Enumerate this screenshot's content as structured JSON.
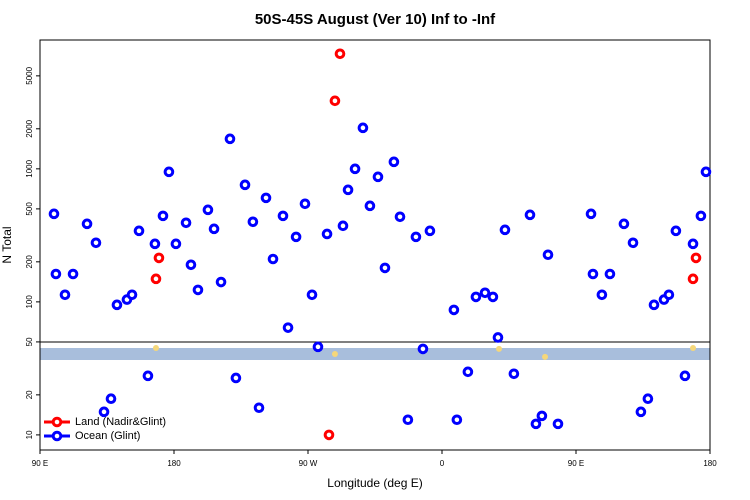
{
  "chart_data": {
    "type": "scatter",
    "title": "50S-45S August (Ver 10)   Inf to -Inf",
    "xlabel": "Longitude (deg E)",
    "ylabel": "N Total",
    "log_y": true,
    "xlim": [
      90,
      540
    ],
    "ylim": [
      7.7,
      9300
    ],
    "xticks": [
      {
        "value": 90,
        "label": "90 E"
      },
      180,
      {
        "value": 270,
        "label": "90 W"
      },
      {
        "value": 360,
        "label": "0"
      },
      {
        "value": 450,
        "label": "90 E"
      },
      {
        "value": 540,
        "label": "180"
      }
    ],
    "yticks": [
      10,
      20,
      50,
      100,
      200,
      500,
      1000,
      2000,
      5000
    ],
    "legend": "bottom-left",
    "series": [
      {
        "name": "Land (Nadir&Glint)",
        "color": "#ff0000",
        "x": [
          167.9,
          169.9,
          288.1,
          291.5,
          284.1,
          528.6,
          530.6
        ],
        "values": [
          149,
          214,
          3246,
          7328,
          10,
          149,
          214
        ]
      },
      {
        "name": "Ocean (Glint)",
        "color": "#0000ff",
        "x": [
          99.4,
          100.7,
          106.8,
          112.2,
          121.6,
          127.6,
          141.7,
          148.4,
          151.8,
          156.5,
          167.2,
          172.6,
          176.6,
          181.3,
          188.1,
          191.4,
          196.1,
          202.8,
          206.9,
          211.6,
          217.6,
          227.7,
          233,
          241.8,
          246.5,
          253.2,
          256.6,
          262,
          268,
          272.7,
          282.8,
          293.5,
          296.9,
          301.6,
          306.9,
          311.6,
          317,
          321.7,
          327.7,
          331.8,
          342.5,
          351.9,
          368,
          382.8,
          388.9,
          394.2,
          397.6,
          402.3,
          419.1,
          431.2,
          460.1,
          461.4,
          467.4,
          472.8,
          482.2,
          488.3,
          502.4,
          509.1,
          512.4,
          517.1,
          528.6,
          533.9,
          537.3,
          133,
          137.7,
          162.5,
          221.6,
          237.1,
          276.7,
          337.1,
          347.2,
          370,
          377.4,
          408.3,
          423.1,
          427.1,
          437.9,
          493.6,
          498.3,
          523.2
        ],
        "values": [
          459,
          162,
          113,
          162,
          386,
          278,
          95,
          104,
          113,
          342,
          273,
          443,
          949,
          273,
          393,
          190,
          123,
          492,
          354,
          141,
          1681,
          758,
          400,
          605,
          210,
          443,
          64,
          308,
          546,
          113,
          324,
          373,
          695,
          1000,
          2033,
          527,
          871,
          180,
          1129,
          436,
          308,
          342,
          87,
          109,
          117,
          109,
          54,
          348,
          451,
          226,
          459,
          162,
          113,
          162,
          386,
          278,
          95,
          104,
          113,
          342,
          273,
          443,
          949,
          14.9,
          18.7,
          27.8,
          26.8,
          16,
          45.9,
          13,
          44.3,
          13,
          29.8,
          28.8,
          12.1,
          13.9,
          12.1,
          14.9,
          18.7,
          27.8
        ]
      },
      {
        "color": "#f5d77a",
        "x": [
          167.9,
          288.1,
          528.6,
          398.3,
          429.2
        ],
        "values": [
          45,
          40.6,
          45,
          44.3,
          38.6
        ]
      }
    ]
  }
}
